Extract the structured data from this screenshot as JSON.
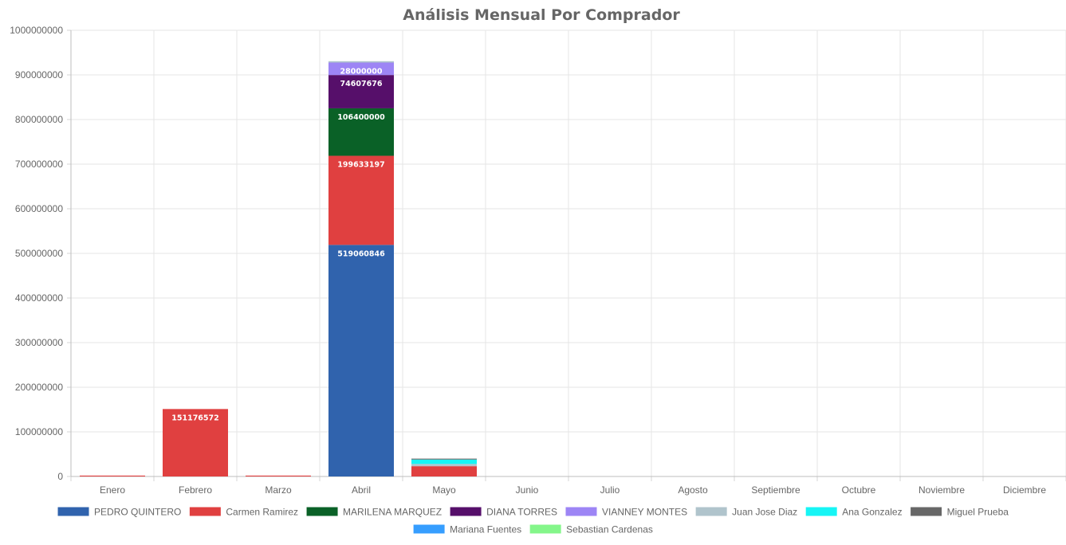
{
  "chart_data": {
    "type": "bar",
    "stacked": true,
    "title": "Análisis Mensual Por Comprador",
    "xlabel": "",
    "ylabel": "",
    "categories": [
      "Enero",
      "Febrero",
      "Marzo",
      "Abril",
      "Mayo",
      "Junio",
      "Julio",
      "Agosto",
      "Septiembre",
      "Octubre",
      "Noviembre",
      "Diciembre"
    ],
    "ylim": [
      0,
      1000000000
    ],
    "y_ticks": [
      "0",
      "100000000",
      "200000000",
      "300000000",
      "400000000",
      "500000000",
      "600000000",
      "700000000",
      "800000000",
      "900000000",
      "1000000000"
    ],
    "grid": true,
    "legend_position": "bottom",
    "series": [
      {
        "name": "PEDRO QUINTERO",
        "color": "#3063ad",
        "values": [
          0,
          0,
          0,
          519060846,
          0,
          0,
          0,
          0,
          0,
          0,
          0,
          0
        ],
        "labels": [
          "",
          "",
          "",
          "519060846",
          "",
          "",
          "",
          "",
          "",
          "",
          "",
          ""
        ]
      },
      {
        "name": "Carmen Ramirez",
        "color": "#e04040",
        "values": [
          2000000,
          151176572,
          2000000,
          199633197,
          23000000,
          0,
          0,
          0,
          0,
          0,
          0,
          0
        ],
        "labels": [
          "",
          "151176572",
          "",
          "199633197",
          "",
          "",
          "",
          "",
          "",
          "",
          "",
          ""
        ]
      },
      {
        "name": "MARILENA MARQUEZ",
        "color": "#0a6127",
        "values": [
          0,
          0,
          0,
          106400000,
          0,
          0,
          0,
          0,
          0,
          0,
          0,
          0
        ],
        "labels": [
          "",
          "",
          "",
          "106400000",
          "",
          "",
          "",
          "",
          "",
          "",
          "",
          ""
        ]
      },
      {
        "name": "DIANA TORRES",
        "color": "#560f6a",
        "values": [
          0,
          0,
          0,
          74607676,
          0,
          0,
          0,
          0,
          0,
          0,
          0,
          0
        ],
        "labels": [
          "",
          "",
          "",
          "74607676",
          "",
          "",
          "",
          "",
          "",
          "",
          "",
          ""
        ]
      },
      {
        "name": "VIANNEY MONTES",
        "color": "#9d85f5",
        "values": [
          0,
          0,
          0,
          28000000,
          0,
          0,
          0,
          0,
          0,
          0,
          0,
          0
        ],
        "labels": [
          "",
          "",
          "",
          "28000000",
          "",
          "",
          "",
          "",
          "",
          "",
          "",
          ""
        ]
      },
      {
        "name": "Juan Jose Diaz",
        "color": "#b0c4cc",
        "values": [
          0,
          0,
          0,
          3000000,
          5000000,
          0,
          0,
          0,
          0,
          0,
          0,
          0
        ],
        "labels": [
          "",
          "",
          "",
          "",
          "",
          "",
          "",
          "",
          "",
          "",
          "",
          ""
        ]
      },
      {
        "name": "Ana Gonzalez",
        "color": "#17f5f5",
        "values": [
          0,
          0,
          0,
          0,
          10000000,
          0,
          0,
          0,
          0,
          0,
          0,
          0
        ],
        "labels": [
          "",
          "",
          "",
          "",
          "",
          "",
          "",
          "",
          "",
          "",
          "",
          ""
        ]
      },
      {
        "name": "Miguel Prueba",
        "color": "#676767",
        "values": [
          0,
          0,
          0,
          0,
          2000000,
          0,
          0,
          0,
          0,
          0,
          0,
          0
        ],
        "labels": [
          "",
          "",
          "",
          "",
          "",
          "",
          "",
          "",
          "",
          "",
          "",
          ""
        ]
      },
      {
        "name": "Mariana Fuentes",
        "color": "#369eff",
        "values": [
          0,
          0,
          0,
          0,
          0,
          0,
          0,
          0,
          0,
          0,
          0,
          0
        ],
        "labels": [
          "",
          "",
          "",
          "",
          "",
          "",
          "",
          "",
          "",
          "",
          "",
          ""
        ]
      },
      {
        "name": "Sebastian Cardenas",
        "color": "#84f68a",
        "values": [
          0,
          0,
          0,
          0,
          0,
          0,
          0,
          0,
          0,
          0,
          0,
          0
        ],
        "labels": [
          "",
          "",
          "",
          "",
          "",
          "",
          "",
          "",
          "",
          "",
          "",
          ""
        ]
      }
    ]
  }
}
